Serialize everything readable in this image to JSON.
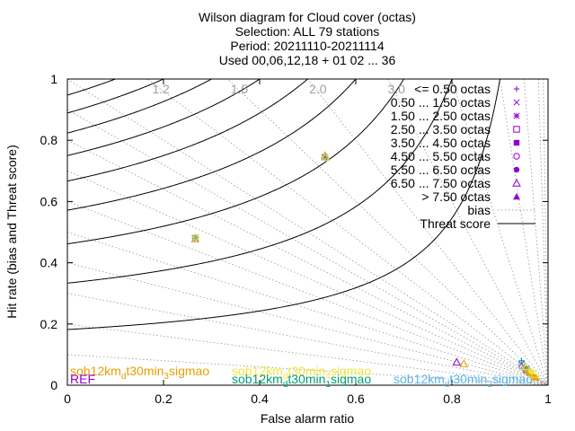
{
  "chart_data": {
    "type": "scatter",
    "title_lines": [
      "Wilson diagram  for Cloud cover (octas)",
      "Selection: ALL     79 stations",
      "Period: 20211110-20211114",
      "Used 00,06,12,18 + 01 02 ... 36"
    ],
    "xlabel": "False alarm ratio",
    "ylabel": "Hit rate (bias and Threat score)",
    "xlim": [
      0,
      1
    ],
    "ylim": [
      0,
      1
    ],
    "xticks": [
      "0",
      "0.2",
      "0.4",
      "0.6",
      "0.8",
      "1"
    ],
    "yticks": [
      "0",
      "0.2",
      "0.4",
      "0.6",
      "0.8",
      "1"
    ],
    "bias_values": [
      0.1,
      0.2,
      0.3,
      0.4,
      0.5,
      0.6,
      0.7,
      0.8,
      0.9,
      1.0,
      1.2,
      1.5,
      2.0,
      3.0,
      5.0,
      10.0,
      20.0,
      50.0,
      100.0
    ],
    "bias_labels": [
      {
        "text": "1.2",
        "value": 1.2
      },
      {
        "text": "1.5",
        "value": 1.5
      },
      {
        "text": "2.0",
        "value": 2.0
      },
      {
        "text": "3.0",
        "value": 3.0
      }
    ],
    "threat_score_values": [
      0.1,
      0.2,
      0.3,
      0.4,
      0.5,
      0.6,
      0.7,
      0.8,
      0.9
    ],
    "legend": {
      "placement": "top-right",
      "entries": [
        {
          "label": "<= 0.50 octas",
          "marker": "plus",
          "color": "#9400d3"
        },
        {
          "label": "0.50 ... 1.50 octas",
          "marker": "cross",
          "color": "#9400d3"
        },
        {
          "label": "1.50 ... 2.50 octas",
          "marker": "asterisk",
          "color": "#9400d3"
        },
        {
          "label": "2.50 ... 3.50 octas",
          "marker": "square-open",
          "color": "#9400d3"
        },
        {
          "label": "3.50 ... 4.50 octas",
          "marker": "square-filled",
          "color": "#9400d3"
        },
        {
          "label": "4.50 ... 5.50 octas",
          "marker": "circle-open",
          "color": "#9400d3"
        },
        {
          "label": "5.50 ... 6.50 octas",
          "marker": "circle-filled",
          "color": "#9400d3"
        },
        {
          "label": "6.50 ... 7.50 octas",
          "marker": "triangle-open",
          "color": "#9400d3"
        },
        {
          "label": "> 7.50 octas",
          "marker": "triangle-filled",
          "color": "#9400d3"
        },
        {
          "label": "bias",
          "marker": "dotted-line",
          "color": "#a0a0a0"
        },
        {
          "label": "Threat score",
          "marker": "solid-line",
          "color": "#000000"
        }
      ]
    },
    "model_labels": [
      {
        "text": "sob12km",
        "sub": "d",
        "rest": "t30min",
        "sub2": "3",
        "tail": "sigmao",
        "color": "#e69f00",
        "x": 0.0,
        "y": 0.04
      },
      {
        "text": "sob12km",
        "sub": "d",
        "rest": "t30min",
        "sub2": "4",
        "tail": "sigmao",
        "color": "#f0e442",
        "x": 0.515,
        "y": 0.04
      },
      {
        "text": "REF",
        "sub": "",
        "rest": "",
        "sub2": "",
        "tail": "",
        "color": "#9400d3",
        "x": 0.0,
        "y": 0.01
      },
      {
        "text": "sob12km",
        "sub": "d",
        "rest": "t30min",
        "sub2": "1",
        "tail": "sigmao",
        "color": "#009e73",
        "x": 0.515,
        "y": 0.01
      },
      {
        "text": "sob12km",
        "sub": "d",
        "rest": "t30min",
        "sub2": "2",
        "tail": "sigmao",
        "color": "#56b4e9",
        "x": 1.0,
        "y": 0.01
      }
    ],
    "series": [
      {
        "color": "#9400d3",
        "points": [
          {
            "x": 0.265,
            "y": 0.48,
            "m": "plus"
          },
          {
            "x": 0.535,
            "y": 0.745,
            "m": "cross"
          },
          {
            "x": 0.81,
            "y": 0.075,
            "m": "triangle-open"
          },
          {
            "x": 0.945,
            "y": 0.07,
            "m": "cross"
          },
          {
            "x": 0.955,
            "y": 0.05,
            "m": "square-open"
          }
        ]
      },
      {
        "color": "#009e73",
        "points": [
          {
            "x": 0.265,
            "y": 0.48,
            "m": "cross"
          },
          {
            "x": 0.535,
            "y": 0.745,
            "m": "plus"
          },
          {
            "x": 0.945,
            "y": 0.08,
            "m": "plus"
          },
          {
            "x": 0.955,
            "y": 0.055,
            "m": "asterisk"
          }
        ]
      },
      {
        "color": "#56b4e9",
        "points": [
          {
            "x": 0.267,
            "y": 0.482,
            "m": "asterisk"
          },
          {
            "x": 0.537,
            "y": 0.745,
            "m": "triangle-open"
          },
          {
            "x": 0.945,
            "y": 0.065,
            "m": "square-open"
          },
          {
            "x": 0.958,
            "y": 0.045,
            "m": "circle-open"
          }
        ]
      },
      {
        "color": "#e69f00",
        "points": [
          {
            "x": 0.266,
            "y": 0.478,
            "m": "triangle-open"
          },
          {
            "x": 0.536,
            "y": 0.75,
            "m": "triangle-open"
          },
          {
            "x": 0.825,
            "y": 0.07,
            "m": "triangle-open"
          },
          {
            "x": 0.95,
            "y": 0.055,
            "m": "circle-open"
          },
          {
            "x": 0.96,
            "y": 0.04,
            "m": "square-filled"
          },
          {
            "x": 0.968,
            "y": 0.03,
            "m": "circle-filled"
          },
          {
            "x": 0.975,
            "y": 0.025,
            "m": "triangle-filled"
          }
        ]
      },
      {
        "color": "#f0e442",
        "points": [
          {
            "x": 0.268,
            "y": 0.484,
            "m": "circle-open"
          },
          {
            "x": 0.538,
            "y": 0.742,
            "m": "circle-open"
          },
          {
            "x": 0.955,
            "y": 0.06,
            "m": "triangle-open"
          },
          {
            "x": 0.965,
            "y": 0.045,
            "m": "circle-filled"
          },
          {
            "x": 0.972,
            "y": 0.035,
            "m": "triangle-open"
          }
        ]
      }
    ]
  }
}
